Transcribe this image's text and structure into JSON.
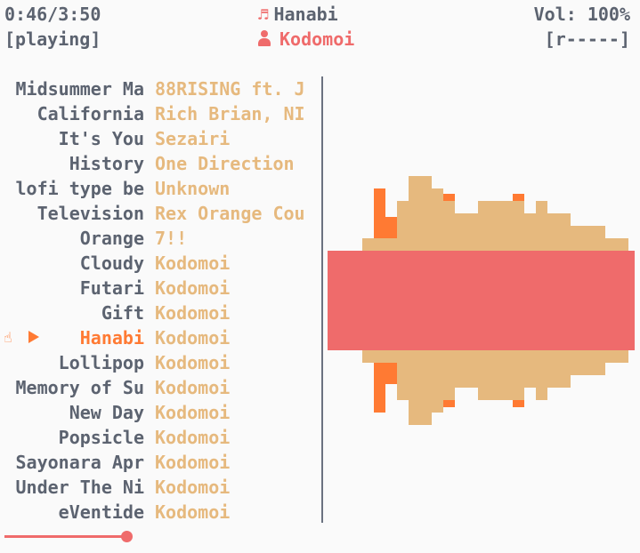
{
  "header": {
    "time": "0:46/3:50",
    "state": "[playing]",
    "title": "Hanabi",
    "artist": "Kodomoi",
    "volume": "Vol: 100%",
    "mode": "[r-----]"
  },
  "playlist": [
    {
      "title": "Midsummer Ma",
      "artist": "88RISING ft. J"
    },
    {
      "title": "California",
      "artist": "Rich Brian, NI"
    },
    {
      "title": "It's You",
      "artist": "Sezairi"
    },
    {
      "title": "History",
      "artist": "One Direction"
    },
    {
      "title": "lofi type be",
      "artist": "Unknown"
    },
    {
      "title": "Television",
      "artist": "Rex Orange Cou"
    },
    {
      "title": "Orange",
      "artist": "7!!"
    },
    {
      "title": "Cloudy",
      "artist": "Kodomoi"
    },
    {
      "title": "Futari",
      "artist": "Kodomoi"
    },
    {
      "title": "Gift",
      "artist": "Kodomoi"
    },
    {
      "title": "Hanabi",
      "artist": "Kodomoi",
      "current": true
    },
    {
      "title": "Lollipop",
      "artist": "Kodomoi"
    },
    {
      "title": "Memory of Su",
      "artist": "Kodomoi"
    },
    {
      "title": "New Day",
      "artist": "Kodomoi"
    },
    {
      "title": "Popsicle",
      "artist": "Kodomoi"
    },
    {
      "title": "Sayonara Apr",
      "artist": "Kodomoi"
    },
    {
      "title": "Under The Ni",
      "artist": "Kodomoi"
    },
    {
      "title": "eVentide",
      "artist": "Kodomoi"
    }
  ],
  "progress": {
    "fraction": 0.2
  },
  "visualizer": {
    "colors": {
      "low": "#e6b97e",
      "mid": "#ef6b6b",
      "peak": "#ff7a33"
    },
    "levels": [
      4,
      4,
      4,
      6,
      6,
      6,
      9,
      11,
      11,
      10,
      9,
      8,
      8,
      9,
      9,
      9,
      9,
      8,
      9,
      8,
      8,
      7,
      7,
      7,
      6,
      6,
      5
    ],
    "center_level": 5
  },
  "icons": {
    "note": "music-note-icon",
    "artist": "person-icon",
    "current": "hand-pointer-icon",
    "playing": "play-icon"
  }
}
